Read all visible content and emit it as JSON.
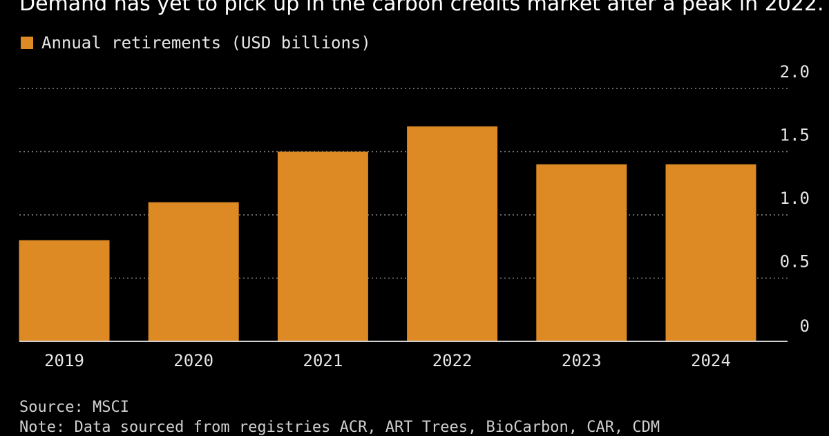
{
  "title": "Demand has yet to pick up in the carbon credits market after a peak in 2022.",
  "legend": {
    "label": "Annual retirements (USD billions)"
  },
  "source": "Source: MSCI",
  "note": "Note: Data sourced from registries ACR, ART Trees, BioCarbon, CAR, CDM",
  "colors": {
    "bar": "#de8a24",
    "grid": "#8a8a8a",
    "axis": "#d0d0d0",
    "background": "#000000"
  },
  "chart_data": {
    "type": "bar",
    "categories": [
      "2019",
      "2020",
      "2021",
      "2022",
      "2023",
      "2024"
    ],
    "series": [
      {
        "name": "Annual retirements (USD billions)",
        "values": [
          0.8,
          1.1,
          1.5,
          1.7,
          1.4,
          1.4
        ]
      }
    ],
    "ylim": [
      0,
      2.0
    ],
    "yticks": [
      0,
      0.5,
      1.0,
      1.5,
      2.0
    ],
    "ytick_labels": [
      "0",
      "0.5",
      "1.0",
      "1.5",
      "2.0"
    ],
    "y_axis_position": "right",
    "grid": true,
    "legend_position": "top-left"
  }
}
